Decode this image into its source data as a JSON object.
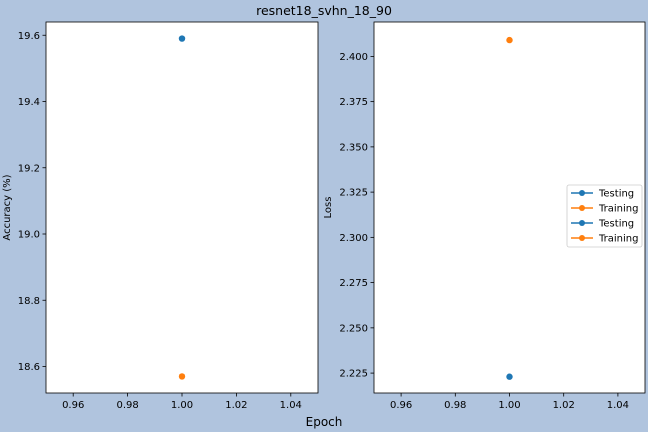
{
  "figure": {
    "title": "resnet18_svhn_18_90",
    "xlabel": "Epoch",
    "background": "#b0c4de"
  },
  "chart_data": [
    {
      "type": "scatter",
      "ylabel": "Accuracy (%)",
      "xlim": [
        0.95,
        1.05
      ],
      "ylim": [
        18.52,
        19.64
      ],
      "xticks": [
        0.96,
        0.98,
        1.0,
        1.02,
        1.04
      ],
      "xtick_labels": [
        "0.96",
        "0.98",
        "1.00",
        "1.02",
        "1.04"
      ],
      "yticks": [
        18.6,
        18.8,
        19.0,
        19.2,
        19.4,
        19.6
      ],
      "ytick_labels": [
        "18.6",
        "18.8",
        "19.0",
        "19.2",
        "19.4",
        "19.6"
      ],
      "grid": false,
      "series": [
        {
          "x": [
            1.0
          ],
          "y": [
            19.59
          ],
          "color": "#1f77b4"
        },
        {
          "x": [
            1.0
          ],
          "y": [
            18.57
          ],
          "color": "#ff7f0e"
        }
      ]
    },
    {
      "type": "scatter",
      "ylabel": "Loss",
      "xlim": [
        0.95,
        1.05
      ],
      "ylim": [
        2.214,
        2.419
      ],
      "xticks": [
        0.96,
        0.98,
        1.0,
        1.02,
        1.04
      ],
      "xtick_labels": [
        "0.96",
        "0.98",
        "1.00",
        "1.02",
        "1.04"
      ],
      "yticks": [
        2.225,
        2.25,
        2.275,
        2.3,
        2.325,
        2.35,
        2.375,
        2.4
      ],
      "ytick_labels": [
        "2.225",
        "2.250",
        "2.275",
        "2.300",
        "2.325",
        "2.350",
        "2.375",
        "2.400"
      ],
      "grid": false,
      "legend_position": "center-right",
      "legend": [
        {
          "name": "Testing",
          "color": "#1f77b4"
        },
        {
          "name": "Training",
          "color": "#ff7f0e"
        },
        {
          "name": "Testing",
          "color": "#1f77b4"
        },
        {
          "name": "Training",
          "color": "#ff7f0e"
        }
      ],
      "series": [
        {
          "x": [
            1.0
          ],
          "y": [
            2.223
          ],
          "color": "#1f77b4"
        },
        {
          "x": [
            1.0
          ],
          "y": [
            2.409
          ],
          "color": "#ff7f0e"
        }
      ]
    }
  ]
}
